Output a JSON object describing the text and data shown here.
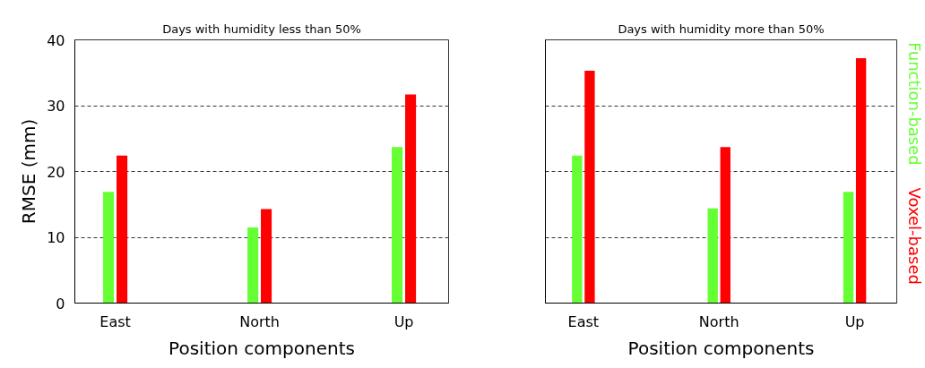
{
  "chart_data": [
    {
      "type": "bar",
      "title": "Days with humidity less than 50%",
      "xlabel": "Position components",
      "ylabel": "RMSE (mm)",
      "categories": [
        "East",
        "North",
        "Up"
      ],
      "series": [
        {
          "color": "#66ff33",
          "values": [
            16.9,
            11.5,
            23.7
          ]
        },
        {
          "color": "#ff0000",
          "values": [
            22.4,
            14.3,
            31.7
          ]
        }
      ],
      "ylim": [
        0,
        40
      ],
      "yticks": [
        0,
        10,
        20,
        30,
        40
      ],
      "grid": "y"
    },
    {
      "type": "bar",
      "title": "Days with humidity more than 50%",
      "xlabel": "Position components",
      "categories": [
        "East",
        "North",
        "Up"
      ],
      "series": [
        {
          "name": "Function-based",
          "color": "#66ff33",
          "values": [
            22.4,
            14.4,
            16.9
          ]
        },
        {
          "name": "Voxel-based",
          "color": "#ff0000",
          "values": [
            35.3,
            23.7,
            37.2
          ]
        }
      ],
      "ylim": [
        0,
        40
      ],
      "yticks": [
        0,
        10,
        20,
        30,
        40
      ],
      "grid": "y",
      "tick_labels": "x"
    }
  ]
}
